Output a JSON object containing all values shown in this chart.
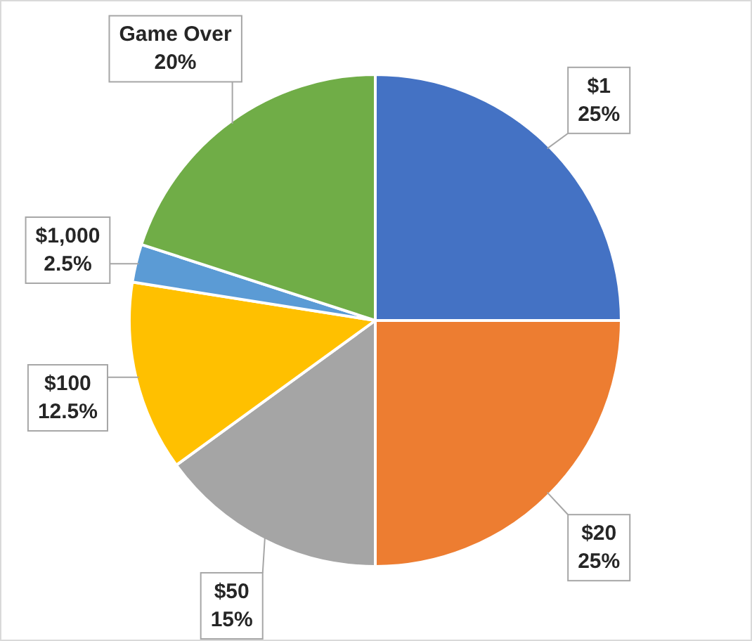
{
  "chart_data": {
    "type": "pie",
    "categories": [
      "$1",
      "$20",
      "$50",
      "$100",
      "$1,000",
      "Game Over"
    ],
    "values": [
      25,
      25,
      15,
      12.5,
      2.5,
      20
    ],
    "value_labels": [
      "25%",
      "25%",
      "15%",
      "12.5%",
      "2.5%",
      "20%"
    ],
    "colors": [
      "#4472c4",
      "#ed7d31",
      "#a5a5a5",
      "#ffc000",
      "#5b9bd5",
      "#70ad47"
    ],
    "legend": false
  }
}
